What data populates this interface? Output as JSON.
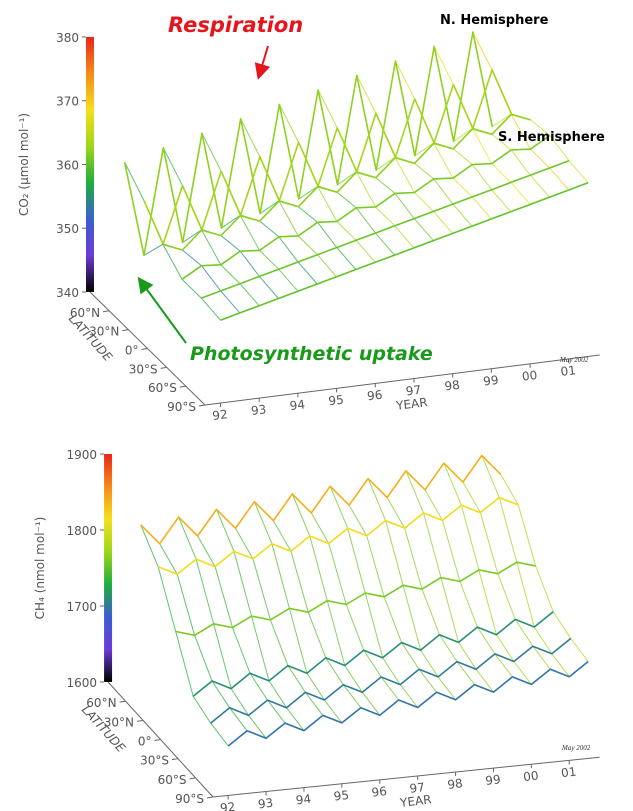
{
  "chart_data": [
    {
      "type": "surface",
      "z_label": "CO₂ (μmol mol⁻¹)",
      "y_label": "LATITUDE",
      "x_label": "YEAR",
      "note": "May 2002",
      "annotations": [
        "Respiration",
        "Photosynthetic uptake",
        "N. Hemisphere",
        "S. Hemisphere"
      ],
      "colorscale": [
        "#000000",
        "#6a3bd8",
        "#3a5fd0",
        "#1fae3a",
        "#9fd61a",
        "#f4e01a",
        "#f58a1a",
        "#e8261a"
      ],
      "x": [
        1992,
        1992.5,
        1993,
        1993.5,
        1994,
        1994.5,
        1995,
        1995.5,
        1996,
        1996.5,
        1997,
        1997.5,
        1998,
        1998.5,
        1999,
        1999.5,
        2000,
        2000.5,
        2001,
        2001.5
      ],
      "xlim": [
        1991.6,
        2001.8
      ],
      "xticks": [
        {
          "value": 1992,
          "label": "92"
        },
        {
          "value": 1993,
          "label": "93"
        },
        {
          "value": 1994,
          "label": "94"
        },
        {
          "value": 1995,
          "label": "95"
        },
        {
          "value": 1996,
          "label": "96"
        },
        {
          "value": 1997,
          "label": "97"
        },
        {
          "value": 1998,
          "label": "98"
        },
        {
          "value": 1999,
          "label": "99"
        },
        {
          "value": 2000,
          "label": "00"
        },
        {
          "value": 2001,
          "label": "01"
        }
      ],
      "ylim": [
        -90,
        90
      ],
      "yticks": [
        {
          "value": 60,
          "label": "60°N"
        },
        {
          "value": 30,
          "label": "30°N"
        },
        {
          "value": 0,
          "label": "0°"
        },
        {
          "value": -30,
          "label": "30°S"
        },
        {
          "value": -60,
          "label": "60°S"
        },
        {
          "value": -90,
          "label": "90°S"
        }
      ],
      "zlim": [
        340,
        380
      ],
      "zticks": [
        340,
        350,
        360,
        370,
        380
      ],
      "series": [
        {
          "lat": -90,
          "values": [
            353,
            353.75,
            354.5,
            355.25,
            356,
            356.75,
            357.5,
            358.25,
            359,
            359.75,
            360.5,
            361.25,
            362,
            362.75,
            363.5,
            364.25,
            365,
            365.75,
            366.5,
            367.25
          ]
        },
        {
          "lat": -60,
          "values": [
            353.5,
            354.25,
            355,
            355.75,
            356.5,
            357.25,
            358,
            358.75,
            359.5,
            360.25,
            361,
            361.75,
            362.5,
            363.25,
            364,
            364.75,
            365.5,
            366.25,
            367,
            367.75
          ]
        },
        {
          "lat": -30,
          "values": [
            353.5,
            355.25,
            355,
            356.75,
            356.5,
            358.25,
            358,
            359.75,
            359.5,
            361.25,
            361,
            362.75,
            362.5,
            364.25,
            364,
            365.75,
            365.5,
            367.25,
            367,
            368.75
          ]
        },
        {
          "lat": 0,
          "values": [
            356,
            354.75,
            357.5,
            356.25,
            359,
            357.75,
            360.5,
            359.25,
            362,
            360.75,
            363.5,
            362.25,
            365,
            363.75,
            366.5,
            365.25,
            368,
            366.75,
            369.5,
            368.25
          ]
        },
        {
          "lat": 30,
          "values": [
            360,
            352.75,
            361.5,
            354.25,
            363,
            355.75,
            364.5,
            357.25,
            366,
            358.75,
            367.5,
            360.25,
            369,
            361.75,
            370.5,
            363.25,
            372,
            364.75,
            373.5,
            366.25
          ]
        },
        {
          "lat": 60,
          "values": [
            363,
            348,
            364.5,
            349.25,
            366,
            350.75,
            367.5,
            352.25,
            369,
            353.75,
            370.5,
            355.25,
            372,
            356.75,
            373.5,
            358.25,
            375,
            359.75,
            376.5,
            361.25
          ]
        }
      ]
    },
    {
      "type": "surface",
      "z_label": "CH₄ (nmol mol⁻¹)",
      "y_label": "LATITUDE",
      "x_label": "YEAR",
      "note": "May 2002",
      "colorscale": [
        "#000000",
        "#6a3bd8",
        "#3a5fd0",
        "#1fae3a",
        "#9fd61a",
        "#f4e01a",
        "#f58a1a",
        "#e8261a"
      ],
      "x": [
        1992,
        1992.5,
        1993,
        1993.5,
        1994,
        1994.5,
        1995,
        1995.5,
        1996,
        1996.5,
        1997,
        1997.5,
        1998,
        1998.5,
        1999,
        1999.5,
        2000,
        2000.5,
        2001,
        2001.5
      ],
      "xlim": [
        1991.6,
        2001.8
      ],
      "xticks": [
        {
          "value": 1992,
          "label": "92"
        },
        {
          "value": 1993,
          "label": "93"
        },
        {
          "value": 1994,
          "label": "94"
        },
        {
          "value": 1995,
          "label": "95"
        },
        {
          "value": 1996,
          "label": "96"
        },
        {
          "value": 1997,
          "label": "97"
        },
        {
          "value": 1998,
          "label": "98"
        },
        {
          "value": 1999,
          "label": "99"
        },
        {
          "value": 2000,
          "label": "00"
        },
        {
          "value": 2001,
          "label": "01"
        }
      ],
      "ylim": [
        -90,
        90
      ],
      "yticks": [
        {
          "value": 60,
          "label": "60°N"
        },
        {
          "value": 30,
          "label": "30°N"
        },
        {
          "value": 0,
          "label": "0°"
        },
        {
          "value": -30,
          "label": "30°S"
        },
        {
          "value": -60,
          "label": "60°S"
        },
        {
          "value": -90,
          "label": "90°S"
        }
      ],
      "zlim": [
        1600,
        1900
      ],
      "zticks": [
        1600,
        1700,
        1800,
        1900
      ],
      "series": [
        {
          "lat": -90,
          "values": [
            1665,
            1682.5,
            1670,
            1687.5,
            1675,
            1692.5,
            1680,
            1697.5,
            1685,
            1702.5,
            1690,
            1707.5,
            1695,
            1712.5,
            1700,
            1717.5,
            1705,
            1722.5,
            1710,
            1727.5
          ]
        },
        {
          "lat": -60,
          "values": [
            1670,
            1687.5,
            1675,
            1692.5,
            1680,
            1697.5,
            1685,
            1702.5,
            1690,
            1707.5,
            1695,
            1712.5,
            1700,
            1717.5,
            1705,
            1722.5,
            1710,
            1727.5,
            1715,
            1732.5
          ]
        },
        {
          "lat": -30,
          "values": [
            1680,
            1697.5,
            1685,
            1702.5,
            1690,
            1707.5,
            1695,
            1712.5,
            1700,
            1717.5,
            1705,
            1722.5,
            1710,
            1727.5,
            1715,
            1732.5,
            1720,
            1737.5,
            1725,
            1742.5
          ]
        },
        {
          "lat": 0,
          "values": [
            1740,
            1732.5,
            1745,
            1737.5,
            1750,
            1742.5,
            1755,
            1747.5,
            1760,
            1752.5,
            1765,
            1757.5,
            1770,
            1762.5,
            1775,
            1767.5,
            1780,
            1772.5,
            1785,
            1777.5
          ]
        },
        {
          "lat": 30,
          "values": [
            1800,
            1787.5,
            1805,
            1792.5,
            1810,
            1797.5,
            1815,
            1802.5,
            1820,
            1807.5,
            1825,
            1812.5,
            1830,
            1817.5,
            1835,
            1822.5,
            1840,
            1827.5,
            1845,
            1832.5
          ]
        },
        {
          "lat": 60,
          "values": [
            1830,
            1802.5,
            1835,
            1807.5,
            1840,
            1812.5,
            1845,
            1817.5,
            1850,
            1822.5,
            1855,
            1827.5,
            1860,
            1832.5,
            1865,
            1837.5,
            1870,
            1842.5,
            1875,
            1847.5
          ]
        }
      ]
    }
  ]
}
